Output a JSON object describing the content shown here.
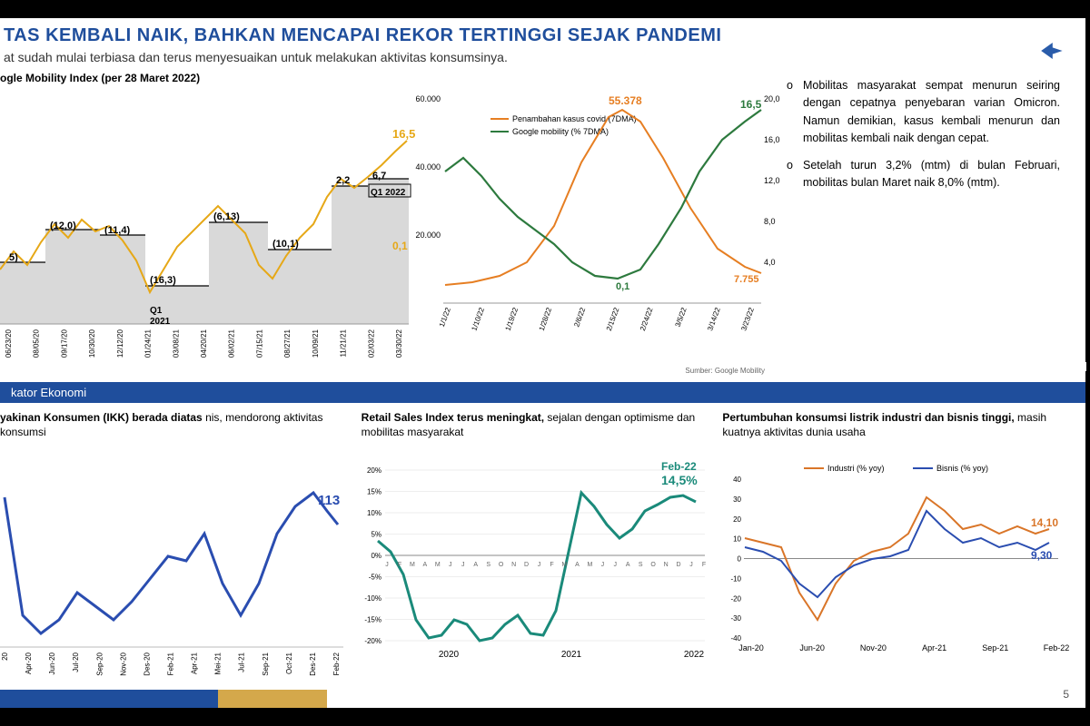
{
  "header": {
    "title": "TAS KEMBALI NAIK, BAHKAN MENCAPAI REKOR TERTINGGI SEJAK PANDEMI",
    "subtitle": "at sudah mulai terbiasa dan terus menyesuaikan untuk melakukan aktivitas konsumsinya.",
    "logo_color": "#2a5caa"
  },
  "chart1": {
    "title": "ogle Mobility Index (per 28 Maret 2022)",
    "end_label_top": "16,5",
    "end_label_bottom": "0,1",
    "annotations": [
      "5)",
      "(12,0)",
      "(11,4)",
      "(16,3)",
      "(6,13)",
      "(10,1)",
      "2,2",
      "6,7"
    ],
    "x_labels": [
      "06/23/20",
      "08/05/20",
      "09/17/20",
      "10/30/20",
      "12/12/20",
      "01/24/21",
      "03/08/21",
      "04/20/21",
      "06/02/21",
      "07/15/21",
      "08/27/21",
      "10/09/21",
      "11/21/21",
      "02/03/22",
      "03/30/22"
    ],
    "q_labels": [
      "Q1 2021",
      "Q1 2022"
    ],
    "line_color": "#e6a817",
    "fill_color": "#d9d9d9",
    "ann_pos": [
      [
        10,
        190
      ],
      [
        55,
        155
      ],
      [
        115,
        160
      ],
      [
        165,
        215
      ],
      [
        235,
        145
      ],
      [
        300,
        175
      ],
      [
        370,
        105
      ],
      [
        410,
        100
      ]
    ],
    "bar_levels": [
      [
        0,
        50,
        192
      ],
      [
        50,
        110,
        156
      ],
      [
        110,
        160,
        162
      ],
      [
        160,
        230,
        218
      ],
      [
        230,
        295,
        148
      ],
      [
        295,
        365,
        178
      ],
      [
        365,
        405,
        108
      ],
      [
        405,
        450,
        100
      ]
    ],
    "q1_2021_pos": [
      165,
      248
    ],
    "q1_2022_pos": [
      408,
      118
    ],
    "line_pts": [
      [
        0,
        200
      ],
      [
        15,
        180
      ],
      [
        30,
        195
      ],
      [
        45,
        170
      ],
      [
        60,
        150
      ],
      [
        75,
        165
      ],
      [
        90,
        145
      ],
      [
        105,
        158
      ],
      [
        120,
        152
      ],
      [
        135,
        168
      ],
      [
        150,
        190
      ],
      [
        165,
        225
      ],
      [
        180,
        200
      ],
      [
        195,
        175
      ],
      [
        210,
        160
      ],
      [
        225,
        145
      ],
      [
        240,
        130
      ],
      [
        255,
        145
      ],
      [
        270,
        160
      ],
      [
        285,
        195
      ],
      [
        300,
        210
      ],
      [
        315,
        185
      ],
      [
        330,
        165
      ],
      [
        345,
        150
      ],
      [
        360,
        120
      ],
      [
        375,
        100
      ],
      [
        390,
        110
      ],
      [
        405,
        98
      ],
      [
        420,
        85
      ],
      [
        435,
        70
      ],
      [
        448,
        58
      ]
    ]
  },
  "chart2": {
    "legend": [
      "Penambahan kasus covid (7DMA)",
      "Google mobility (% 7DMA)"
    ],
    "legend_colors": [
      "#e67e22",
      "#2d7a3e"
    ],
    "peak_label": "55.378",
    "end_green": "16,5",
    "mid_green": "0,1",
    "end_orange": "7.755",
    "y_left": [
      "60.000",
      "40.000",
      "20.000"
    ],
    "y_right": [
      "20,0",
      "16,0",
      "12,0",
      "8,0",
      "4,0"
    ],
    "x_labels": [
      "1/1/22",
      "1/10/22",
      "1/19/22",
      "1/28/22",
      "2/6/22",
      "2/15/22",
      "2/24/22",
      "3/5/22",
      "3/14/22",
      "3/23/22"
    ],
    "source_note": "Sumber: Google Mobility",
    "orange_pts": [
      [
        30,
        235
      ],
      [
        60,
        232
      ],
      [
        90,
        225
      ],
      [
        120,
        210
      ],
      [
        150,
        170
      ],
      [
        180,
        100
      ],
      [
        210,
        50
      ],
      [
        225,
        42
      ],
      [
        245,
        55
      ],
      [
        270,
        95
      ],
      [
        300,
        150
      ],
      [
        330,
        195
      ],
      [
        360,
        215
      ],
      [
        378,
        222
      ]
    ],
    "green_pts": [
      [
        30,
        110
      ],
      [
        50,
        95
      ],
      [
        70,
        115
      ],
      [
        90,
        140
      ],
      [
        110,
        160
      ],
      [
        130,
        175
      ],
      [
        150,
        190
      ],
      [
        170,
        210
      ],
      [
        195,
        225
      ],
      [
        220,
        228
      ],
      [
        245,
        218
      ],
      [
        265,
        190
      ],
      [
        290,
        150
      ],
      [
        310,
        110
      ],
      [
        335,
        75
      ],
      [
        360,
        55
      ],
      [
        378,
        42
      ]
    ]
  },
  "bullets": [
    "Mobilitas masyarakat sempat menurun seiring dengan cepatnya penyebaran varian Omicron. Namun demikian, kasus kembali menurun dan mobilitas kembali naik dengan cepat.",
    "Setelah turun 3,2% (mtm) di bulan Februari, mobilitas bulan Maret naik 8,0% (mtm)."
  ],
  "divider": "kator Ekonomi",
  "bchart1": {
    "title_bold": "yakinan Konsumen (IKK) berada diatas",
    "title_rest": "nis, mendorong aktivitas konsumsi",
    "end_label": "113",
    "color": "#2a4db0",
    "x_labels": [
      "20",
      "Apr-20",
      "Jun-20",
      "Jul-20",
      "Sep-20",
      "Nov-20",
      "Des-20",
      "Feb-21",
      "Apr-21",
      "Mei-21",
      "Jul-21",
      "Sep-21",
      "Oct-21",
      "Des-21",
      "Feb-22"
    ],
    "pts": [
      [
        5,
        60
      ],
      [
        25,
        190
      ],
      [
        45,
        210
      ],
      [
        65,
        195
      ],
      [
        85,
        165
      ],
      [
        105,
        180
      ],
      [
        125,
        195
      ],
      [
        145,
        175
      ],
      [
        165,
        150
      ],
      [
        185,
        125
      ],
      [
        205,
        130
      ],
      [
        225,
        100
      ],
      [
        245,
        155
      ],
      [
        265,
        190
      ],
      [
        285,
        155
      ],
      [
        305,
        100
      ],
      [
        325,
        70
      ],
      [
        345,
        55
      ],
      [
        360,
        75
      ],
      [
        372,
        90
      ]
    ]
  },
  "bchart2": {
    "title_bold": "Retail Sales Index terus meningkat,",
    "title_rest": " sejalan dengan optimisme dan mobilitas masyarakat",
    "end_label_date": "Feb-22",
    "end_label_val": "14,5%",
    "color": "#1a8a7a",
    "y_labels": [
      "20%",
      "15%",
      "10%",
      "5%",
      "0%",
      "-5%",
      "-10%",
      "-15%",
      "-20%"
    ],
    "x_groups": [
      "2020",
      "2021",
      "2022"
    ],
    "x_months": "J F M A M J J A S O N D J F M A M J J A S O N D J F",
    "pts": [
      [
        18,
        108
      ],
      [
        32,
        120
      ],
      [
        46,
        145
      ],
      [
        60,
        195
      ],
      [
        74,
        215
      ],
      [
        88,
        212
      ],
      [
        102,
        195
      ],
      [
        116,
        200
      ],
      [
        130,
        218
      ],
      [
        144,
        215
      ],
      [
        158,
        200
      ],
      [
        172,
        190
      ],
      [
        186,
        210
      ],
      [
        200,
        212
      ],
      [
        214,
        185
      ],
      [
        228,
        120
      ],
      [
        242,
        55
      ],
      [
        256,
        70
      ],
      [
        270,
        90
      ],
      [
        284,
        105
      ],
      [
        298,
        95
      ],
      [
        312,
        75
      ],
      [
        326,
        68
      ],
      [
        340,
        60
      ],
      [
        354,
        58
      ],
      [
        368,
        65
      ]
    ]
  },
  "bchart3": {
    "title_bold": "Pertumbuhan konsumsi listrik industri dan bisnis tinggi,",
    "title_rest": " masih kuatnya aktivitas dunia usaha",
    "legend": [
      "Industri (% yoy)",
      "Bisnis (% yoy)"
    ],
    "legend_colors": [
      "#d97528",
      "#2a4db0"
    ],
    "end_label_orange": "14,10",
    "end_label_blue": "9,30",
    "y_labels": [
      "40",
      "30",
      "20",
      "10",
      "0",
      "-10",
      "-20",
      "-30",
      "-40"
    ],
    "x_labels": [
      "Jan-20",
      "Jun-20",
      "Nov-20",
      "Apr-21",
      "Sep-21",
      "Feb-22"
    ],
    "orange_pts": [
      [
        25,
        105
      ],
      [
        45,
        110
      ],
      [
        65,
        115
      ],
      [
        85,
        165
      ],
      [
        105,
        195
      ],
      [
        125,
        155
      ],
      [
        145,
        130
      ],
      [
        165,
        120
      ],
      [
        185,
        115
      ],
      [
        205,
        100
      ],
      [
        225,
        60
      ],
      [
        245,
        75
      ],
      [
        265,
        95
      ],
      [
        285,
        90
      ],
      [
        305,
        100
      ],
      [
        325,
        92
      ],
      [
        345,
        100
      ],
      [
        360,
        95
      ]
    ],
    "blue_pts": [
      [
        25,
        115
      ],
      [
        45,
        120
      ],
      [
        65,
        130
      ],
      [
        85,
        155
      ],
      [
        105,
        170
      ],
      [
        125,
        148
      ],
      [
        145,
        135
      ],
      [
        165,
        128
      ],
      [
        185,
        125
      ],
      [
        205,
        118
      ],
      [
        225,
        75
      ],
      [
        245,
        95
      ],
      [
        265,
        110
      ],
      [
        285,
        105
      ],
      [
        305,
        115
      ],
      [
        325,
        110
      ],
      [
        345,
        118
      ],
      [
        360,
        110
      ]
    ]
  },
  "page_number": "5"
}
